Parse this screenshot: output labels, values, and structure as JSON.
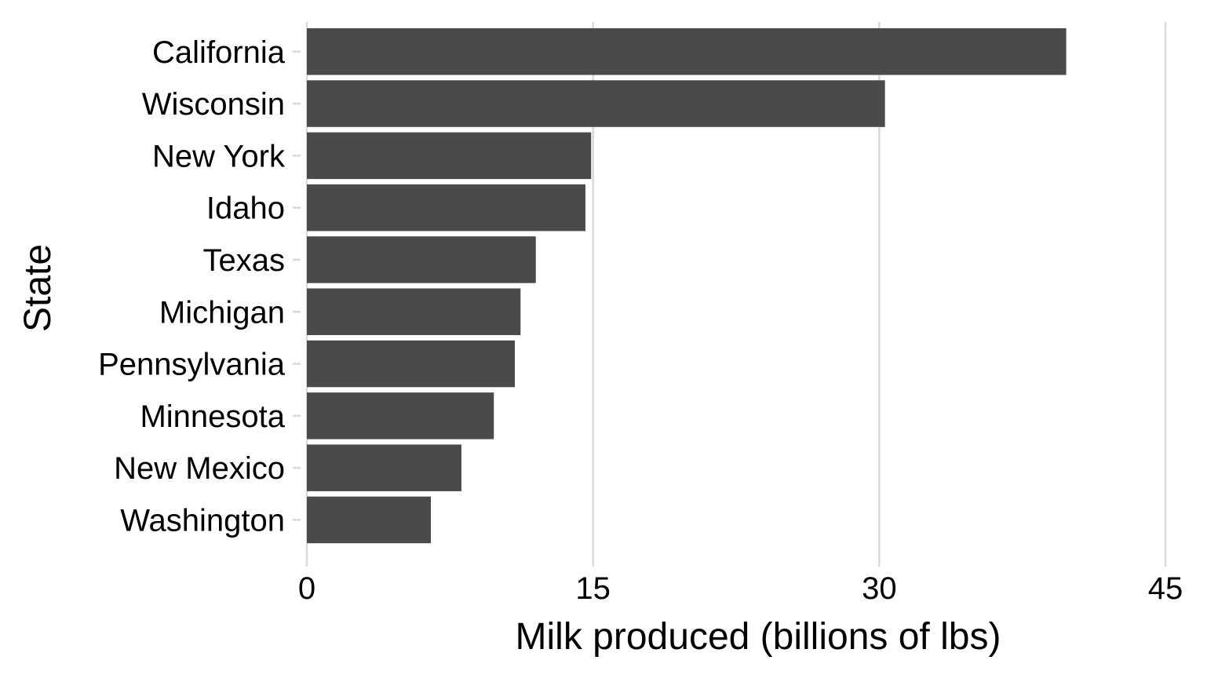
{
  "chart_data": {
    "type": "bar",
    "orientation": "horizontal",
    "title": "",
    "xlabel": "Milk produced (billions of lbs)",
    "ylabel": "State",
    "categories": [
      "California",
      "Wisconsin",
      "New York",
      "Idaho",
      "Texas",
      "Michigan",
      "Pennsylvania",
      "Minnesota",
      "New Mexico",
      "Washington"
    ],
    "values": [
      39.8,
      30.3,
      14.9,
      14.6,
      12.0,
      11.2,
      10.9,
      9.8,
      8.1,
      6.5
    ],
    "xlim": [
      0,
      45
    ],
    "x_ticks": [
      "0",
      "15",
      "30",
      "45"
    ],
    "grid": "vertical major gridlines",
    "legend": "none",
    "colors": {
      "bar": "#4a4a4a",
      "grid": "#d9d9d9",
      "text": "#000000",
      "background": "#ffffff"
    }
  }
}
